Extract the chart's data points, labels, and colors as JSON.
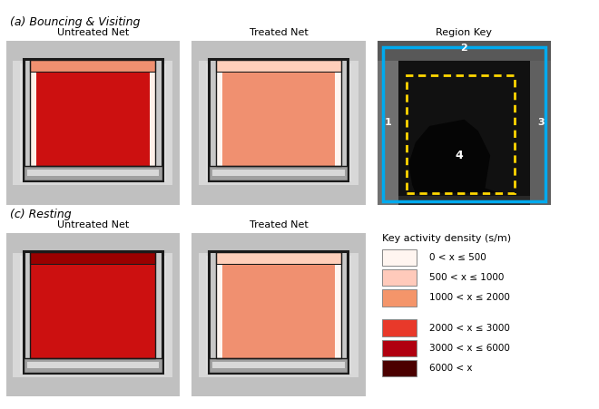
{
  "title_a": "(a) Bouncing & Visiting",
  "title_c": "(c) Resting",
  "label_untreated": "Untreated Net",
  "label_treated": "Treated Net",
  "label_region": "Region Key",
  "legend_title": "Key activity density (s/m)",
  "legend_entries": [
    {
      "color": "#FFF5F0",
      "label": "0 < x ≤ 500"
    },
    {
      "color": "#FFCABB",
      "label": "500 < x ≤ 1000"
    },
    {
      "color": "#F4956A",
      "label": "1000 < x ≤ 2000"
    },
    {
      "color": "#E8392A",
      "label": "2000 < x ≤ 3000"
    },
    {
      "color": "#B00010",
      "label": "3000 < x ≤ 6000"
    },
    {
      "color": "#4B0000",
      "label": "6000 < x"
    }
  ],
  "bouncing_untreated_main": "#CC1010",
  "bouncing_untreated_top": "#F09070",
  "bouncing_untreated_sides": "#FFF0E8",
  "bouncing_treated_main": "#F09070",
  "bouncing_treated_top": "#FFCFBA",
  "bouncing_treated_sides": "#FFF5F0",
  "resting_untreated_main": "#CC1010",
  "resting_untreated_top": "#990000",
  "resting_untreated_sides": "#CC1010",
  "resting_treated_main": "#F09070",
  "resting_treated_top": "#FFCFBA",
  "resting_treated_sides": "#FFF5F0",
  "bg_color": "#FFFFFF"
}
